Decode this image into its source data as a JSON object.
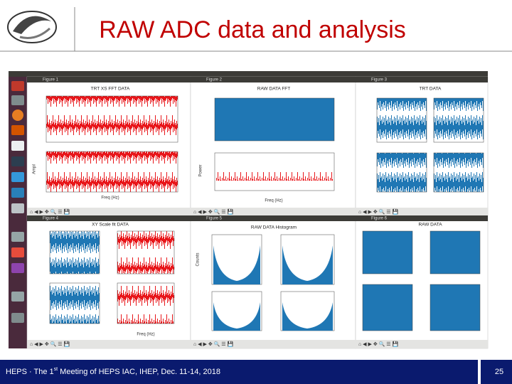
{
  "header": {
    "title": "RAW ADC data and analysis"
  },
  "screenshot": {
    "windows": [
      {
        "title": "Figure 1",
        "plot_title": "TRT XS FFT DATA",
        "xlabel": "Freq (Hz)",
        "ylabel": "Ampl"
      },
      {
        "title": "Figure 2",
        "plot_title": "RAW DATA FFT",
        "xlabel": "Freq (Hz)",
        "ylabel": "Power"
      },
      {
        "title": "Figure 3",
        "plot_title": "TRT DATA"
      },
      {
        "title": "Figure 4",
        "plot_title": "XY Scale fit DATA",
        "xlabel": "Freq (Hz)"
      },
      {
        "title": "Figure 5",
        "plot_title": "RAW DATA Histogram",
        "ylabel": "Counts"
      },
      {
        "title": "Figure 6",
        "plot_title": "RAW DATA"
      }
    ]
  },
  "footer": {
    "text_before": "HEPS · The 1",
    "superscript": "st",
    "text_after": " Meeting of HEPS IAC, IHEP, Dec. 11-14, 2018",
    "page": "25"
  }
}
